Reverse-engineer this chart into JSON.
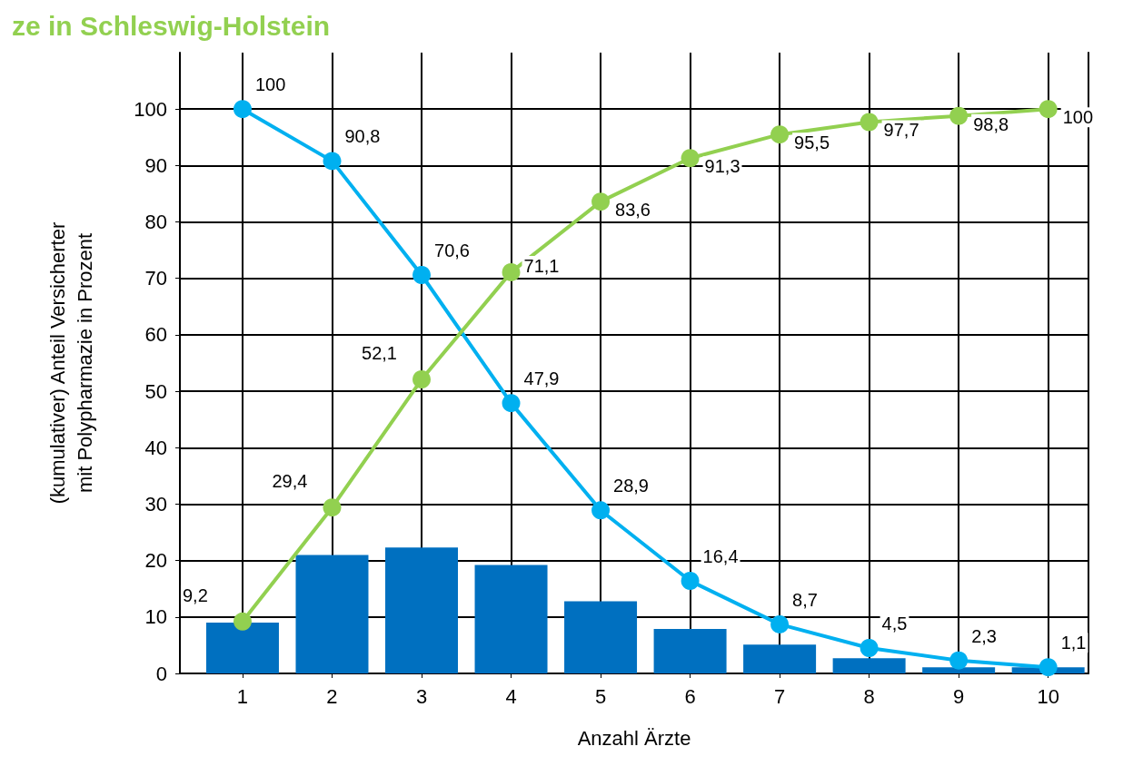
{
  "chart_data": {
    "type": "line",
    "title": "ze in Schleswig-Holstein",
    "xlabel": "Anzahl Ärzte",
    "ylabel": "(kumulativer) Anteil Versicherter\nmit Polypharmazie in Prozent",
    "x": [
      1,
      2,
      3,
      4,
      5,
      6,
      7,
      8,
      9,
      10
    ],
    "xlim": [
      0.3,
      10.45
    ],
    "xticks": [
      1,
      2,
      3,
      4,
      5,
      6,
      7,
      8,
      9,
      10
    ],
    "ylim": [
      0,
      110
    ],
    "yticks": [
      0,
      10,
      20,
      30,
      40,
      50,
      60,
      70,
      80,
      90,
      100
    ],
    "grid": true,
    "marker": "circle",
    "line_style": "solid",
    "series": [
      {
        "type": "bar",
        "color": "#0070c0",
        "values": [
          9.0,
          21.0,
          22.3,
          19.2,
          12.8,
          7.9,
          5.1,
          2.7,
          1.1,
          1.1
        ]
      },
      {
        "color": "#00b0f0",
        "values": [
          100,
          90.8,
          70.6,
          47.9,
          28.9,
          16.4,
          8.7,
          4.5,
          2.3,
          1.1
        ],
        "value_labels": [
          "100",
          "90,8",
          "70,6",
          "47,9",
          "28,9",
          "16,4",
          "8,7",
          "4,5",
          "2,3",
          "1,1"
        ]
      },
      {
        "color": "#92d050",
        "values": [
          9.2,
          29.4,
          52.1,
          71.1,
          83.6,
          91.3,
          95.5,
          97.7,
          98.8,
          100
        ],
        "value_labels": [
          "9,2",
          "29,4",
          "52,1",
          "71,1",
          "83,6",
          "91,3",
          "95,5",
          "97,7",
          "98,8",
          "100"
        ]
      }
    ]
  }
}
